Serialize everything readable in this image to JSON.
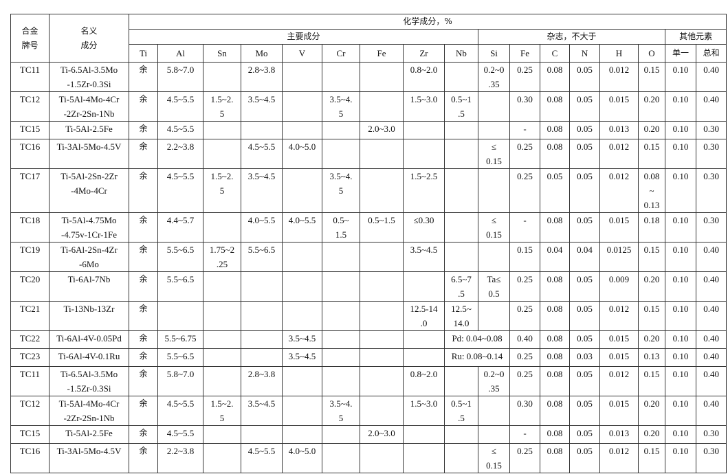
{
  "header": {
    "grade": "合金\n牌号",
    "nominal": "名义\n成分",
    "chem": "化学成分，%",
    "main": "主要成分",
    "impurity": "杂志，不大于",
    "other": "其他元素",
    "main_cols": [
      "Ti",
      "Al",
      "Sn",
      "Mo",
      "V",
      "Cr",
      "Fe",
      "Zr",
      "Nb"
    ],
    "impurity_cols": [
      "Si",
      "Fe",
      "C",
      "N",
      "H",
      "O"
    ],
    "other_cols": [
      "单一",
      "总和"
    ]
  },
  "rows": [
    [
      "TC11",
      "Ti-6.5Al-3.5Mo\n-1.5Zr-0.3Si",
      "余",
      "5.8~7.0",
      "",
      "2.8~3.8",
      "",
      "",
      "",
      "0.8~2.0",
      "",
      "0.2~0\n.35",
      "0.25",
      "0.08",
      "0.05",
      "0.012",
      "0.15",
      "0.10",
      "0.40"
    ],
    [
      "TC12",
      "Ti-5Al-4Mo-4Cr\n-2Zr-2Sn-1Nb",
      "余",
      "4.5~5.5",
      "1.5~2.\n5",
      "3.5~4.5",
      "",
      "3.5~4.\n5",
      "",
      "1.5~3.0",
      "0.5~1\n.5",
      "",
      "0.30",
      "0.08",
      "0.05",
      "0.015",
      "0.20",
      "0.10",
      "0.40"
    ],
    [
      "TC15",
      "Ti-5Al-2.5Fe",
      "余",
      "4.5~5.5",
      "",
      "",
      "",
      "",
      "2.0~3.0",
      "",
      "",
      "",
      "-",
      "0.08",
      "0.05",
      "0.013",
      "0.20",
      "0.10",
      "0.30"
    ],
    [
      "TC16",
      "Ti-3Al-5Mo-4.5V",
      "余",
      "2.2~3.8",
      "",
      "4.5~5.5",
      "4.0~5.0",
      "",
      "",
      "",
      "",
      "≤\n0.15",
      "0.25",
      "0.08",
      "0.05",
      "0.012",
      "0.15",
      "0.10",
      "0.30"
    ],
    [
      "TC17",
      "Ti-5Al-2Sn-2Zr\n-4Mo-4Cr",
      "余",
      "4.5~5.5",
      "1.5~2.\n5",
      "3.5~4.5",
      "",
      "3.5~4.\n5",
      "",
      "1.5~2.5",
      "",
      "",
      "0.25",
      "0.05",
      "0.05",
      "0.012",
      "0.08\n~\n0.13",
      "0.10",
      "0.30"
    ],
    [
      "TC18",
      "Ti-5Al-4.75Mo\n-4.75v-1Cr-1Fe",
      "余",
      "4.4~5.7",
      "",
      "4.0~5.5",
      "4.0~5.5",
      "0.5~\n1.5",
      "0.5~1.5",
      "≤0.30",
      "",
      "≤\n0.15",
      "-",
      "0.08",
      "0.05",
      "0.015",
      "0.18",
      "0.10",
      "0.30"
    ],
    [
      "TC19",
      "Ti-6Al-2Sn-4Zr\n-6Mo",
      "余",
      "5.5~6.5",
      "1.75~2\n.25",
      "5.5~6.5",
      "",
      "",
      "",
      "3.5~4.5",
      "",
      "",
      "0.15",
      "0.04",
      "0.04",
      "0.0125",
      "0.15",
      "0.10",
      "0.40"
    ],
    [
      "TC20",
      "Ti-6Al-7Nb",
      "余",
      "5.5~6.5",
      "",
      "",
      "",
      "",
      "",
      "",
      "6.5~7\n.5",
      "Ta≤\n0.5",
      "0.25",
      "0.08",
      "0.05",
      "0.009",
      "0.20",
      "0.10",
      "0.40"
    ],
    [
      "TC21",
      "Ti-13Nb-13Zr",
      "余",
      "",
      "",
      "",
      "",
      "",
      "",
      "12.5-14\n.0",
      "12.5~\n14.0",
      "",
      "0.25",
      "0.08",
      "0.05",
      "0.012",
      "0.15",
      "0.10",
      "0.40"
    ],
    [
      "TC22",
      "Ti-6Al-4V-0.05Pd",
      "余",
      "5.5~6.75",
      "",
      "",
      "3.5~4.5",
      "",
      "",
      "",
      "Pd: 0.04~0.08",
      null,
      "0.40",
      "0.08",
      "0.05",
      "0.015",
      "0.20",
      "0.10",
      "0.40"
    ],
    [
      "TC23",
      "Ti-6Al-4V-0.1Ru",
      "余",
      "5.5~6.5",
      "",
      "",
      "3.5~4.5",
      "",
      "",
      "",
      "Ru: 0.08~0.14",
      null,
      "0.25",
      "0.08",
      "0.03",
      "0.015",
      "0.13",
      "0.10",
      "0.40"
    ],
    [
      "TC11",
      "Ti-6.5Al-3.5Mo\n-1.5Zr-0.3Si",
      "余",
      "5.8~7.0",
      "",
      "2.8~3.8",
      "",
      "",
      "",
      "0.8~2.0",
      "",
      "0.2~0\n.35",
      "0.25",
      "0.08",
      "0.05",
      "0.012",
      "0.15",
      "0.10",
      "0.40"
    ],
    [
      "TC12",
      "Ti-5Al-4Mo-4Cr\n-2Zr-2Sn-1Nb",
      "余",
      "4.5~5.5",
      "1.5~2.\n5",
      "3.5~4.5",
      "",
      "3.5~4.\n5",
      "",
      "1.5~3.0",
      "0.5~1\n.5",
      "",
      "0.30",
      "0.08",
      "0.05",
      "0.015",
      "0.20",
      "0.10",
      "0.40"
    ],
    [
      "TC15",
      "Ti-5Al-2.5Fe",
      "余",
      "4.5~5.5",
      "",
      "",
      "",
      "",
      "2.0~3.0",
      "",
      "",
      "",
      "-",
      "0.08",
      "0.05",
      "0.013",
      "0.20",
      "0.10",
      "0.30"
    ],
    [
      "TC16",
      "Ti-3Al-5Mo-4.5V",
      "余",
      "2.2~3.8",
      "",
      "4.5~5.5",
      "4.0~5.0",
      "",
      "",
      "",
      "",
      "≤\n0.15",
      "0.25",
      "0.08",
      "0.05",
      "0.012",
      "0.15",
      "0.10",
      "0.30"
    ]
  ]
}
